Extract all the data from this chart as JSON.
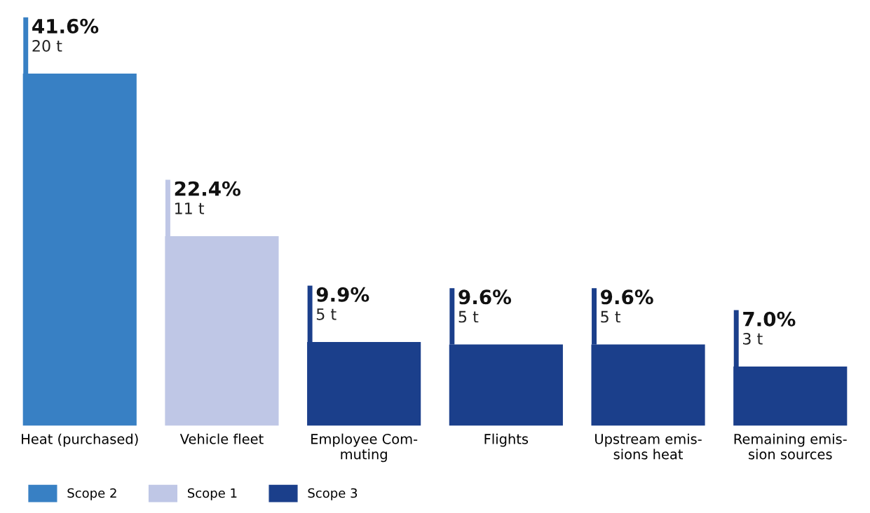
{
  "chart_data": {
    "type": "bar",
    "categories": [
      "Heat (purchased)",
      "Vehicle fleet",
      "Employee Com-\nmuting",
      "Flights",
      "Upstream emis-\nsions heat",
      "Remaining emis-\nsion sources"
    ],
    "series": [
      {
        "name": "Scope 2",
        "color": "#3880c4",
        "values": [
          41.6,
          null,
          null,
          null,
          null,
          null
        ],
        "value_labels": [
          "41.6%\n20 t",
          null,
          null,
          null,
          null,
          null
        ]
      },
      {
        "name": "Scope 1",
        "color": "#bfc7e6",
        "values": [
          null,
          22.4,
          null,
          null,
          null,
          null
        ],
        "value_labels": [
          null,
          "22.4%\n11 t",
          null,
          null,
          null,
          null
        ]
      },
      {
        "name": "Scope 3",
        "color": "#1b3f8b",
        "values": [
          null,
          null,
          9.9,
          9.6,
          9.6,
          7.0
        ],
        "value_labels": [
          null,
          null,
          "9.9%\n5 t",
          "9.6%\n5 t",
          "9.6%\n5 t",
          "7.0%\n3 t"
        ]
      }
    ],
    "legend": "bottom left"
  }
}
